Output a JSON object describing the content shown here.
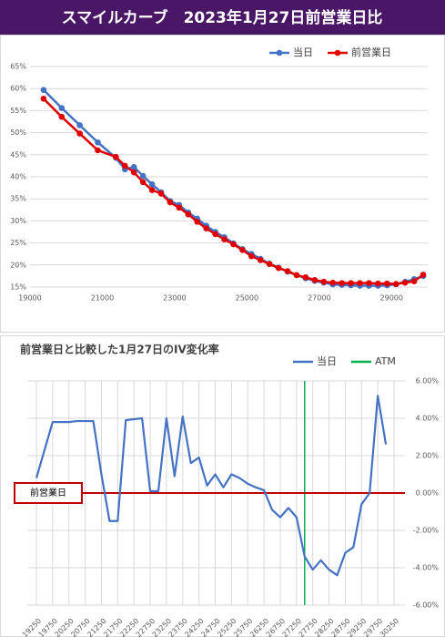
{
  "chart_data": [
    {
      "type": "line",
      "title": "スマイルカーブ　2023年1月27日前営業日比",
      "markers": true,
      "legend": "top-right",
      "grid": true,
      "x": [
        19375,
        19875,
        20375,
        20875,
        21375,
        21625,
        21875,
        22125,
        22375,
        22625,
        22875,
        23125,
        23375,
        23625,
        23875,
        24125,
        24375,
        24625,
        24875,
        25125,
        25375,
        25625,
        25875,
        26125,
        26375,
        26625,
        26875,
        27125,
        27375,
        27625,
        27875,
        28125,
        28375,
        28625,
        28875,
        29125,
        29375,
        29625,
        29875
      ],
      "xlim": [
        19000,
        30000
      ],
      "xticks": [
        19000,
        21000,
        23000,
        25000,
        27000,
        29000
      ],
      "ylim": [
        15,
        65
      ],
      "yticks": [
        {
          "value": 15,
          "label": "15%"
        },
        {
          "value": 20,
          "label": "20%"
        },
        {
          "value": 25,
          "label": "25%"
        },
        {
          "value": 30,
          "label": "30%"
        },
        {
          "value": 35,
          "label": "35%"
        },
        {
          "value": 40,
          "label": "40%"
        },
        {
          "value": 45,
          "label": "45%"
        },
        {
          "value": 50,
          "label": "50%"
        },
        {
          "value": 55,
          "label": "55%"
        },
        {
          "value": 60,
          "label": "60%"
        },
        {
          "value": 65,
          "label": "65%"
        }
      ],
      "series": [
        {
          "name": "当日",
          "color": "#4472c4",
          "values": [
            59.7,
            55.6,
            51.7,
            47.8,
            44.3,
            41.7,
            42.2,
            40.2,
            38.3,
            36.5,
            34.5,
            33.6,
            31.9,
            30.5,
            28.9,
            27.5,
            26.3,
            24.9,
            23.6,
            22.5,
            21.4,
            20.3,
            19.4,
            18.5,
            17.7,
            17.0,
            16.4,
            16.0,
            15.6,
            15.5,
            15.4,
            15.3,
            15.3,
            15.3,
            15.4,
            15.6,
            16.2,
            16.8,
            17.5
          ]
        },
        {
          "name": "前営業日",
          "color": "#e00000",
          "values": [
            57.7,
            53.6,
            49.8,
            46.0,
            44.5,
            42.5,
            41.0,
            38.8,
            37.0,
            36.2,
            34.2,
            33.0,
            31.5,
            29.8,
            28.3,
            27.0,
            25.8,
            24.7,
            23.4,
            22.0,
            21.1,
            20.2,
            19.3,
            18.6,
            17.7,
            17.2,
            16.6,
            16.2,
            16.0,
            15.9,
            15.9,
            15.9,
            15.9,
            15.8,
            15.8,
            15.7,
            16.0,
            16.3,
            17.8
          ]
        }
      ]
    },
    {
      "type": "line",
      "title": "前営業日と比較した1月27日のIV変化率",
      "markers": false,
      "legend": "top-right",
      "grid": true,
      "y_axis": "right",
      "x": [
        19250,
        19500,
        19750,
        20000,
        20250,
        20500,
        20750,
        21000,
        21250,
        21500,
        21750,
        22000,
        22250,
        22500,
        22750,
        23000,
        23250,
        23500,
        23750,
        24000,
        24250,
        24500,
        24750,
        25000,
        25250,
        25500,
        25750,
        26000,
        26250,
        26500,
        26750,
        27000,
        27250,
        27500,
        27750,
        28000,
        28250,
        28500,
        28750,
        29000,
        29250,
        29500,
        29750,
        30000
      ],
      "xlim": [
        19250,
        30250
      ],
      "xticks": [
        19250,
        19750,
        20250,
        20750,
        21250,
        21750,
        22250,
        22750,
        23250,
        23750,
        24250,
        24750,
        25250,
        25750,
        26250,
        26750,
        27250,
        27750,
        28250,
        28750,
        29250,
        29750,
        30250
      ],
      "ylim": [
        -6,
        6
      ],
      "yticks": [
        {
          "value": -6,
          "label": "-6.00%"
        },
        {
          "value": -4,
          "label": "-4.00%"
        },
        {
          "value": -2,
          "label": "-2.00%"
        },
        {
          "value": 0,
          "label": "0.00%"
        },
        {
          "value": 2,
          "label": "2.00%"
        },
        {
          "value": 4,
          "label": "4.00%"
        },
        {
          "value": 6,
          "label": "6.00%"
        }
      ],
      "series": [
        {
          "name": "当日",
          "color": "#4472c4",
          "values": [
            0.8,
            2.3,
            3.8,
            3.8,
            3.8,
            3.85,
            3.85,
            3.85,
            1.0,
            -1.5,
            -1.5,
            3.9,
            3.95,
            4.0,
            0.1,
            0.1,
            4.0,
            0.9,
            4.1,
            1.6,
            1.9,
            0.4,
            1.0,
            0.3,
            1.0,
            0.8,
            0.5,
            0.3,
            0.15,
            -0.9,
            -1.3,
            -0.8,
            -1.3,
            -3.4,
            -4.1,
            -3.6,
            -4.1,
            -4.4,
            -3.2,
            -2.9,
            -0.6,
            0.0,
            5.2,
            2.6
          ]
        }
      ],
      "reference_lines": [
        {
          "name": "ATM",
          "color": "#00b050",
          "x": 27500,
          "legend": true
        },
        {
          "name": "前営業日",
          "color": "#c00000",
          "y": 0,
          "legend": false
        }
      ]
    }
  ]
}
